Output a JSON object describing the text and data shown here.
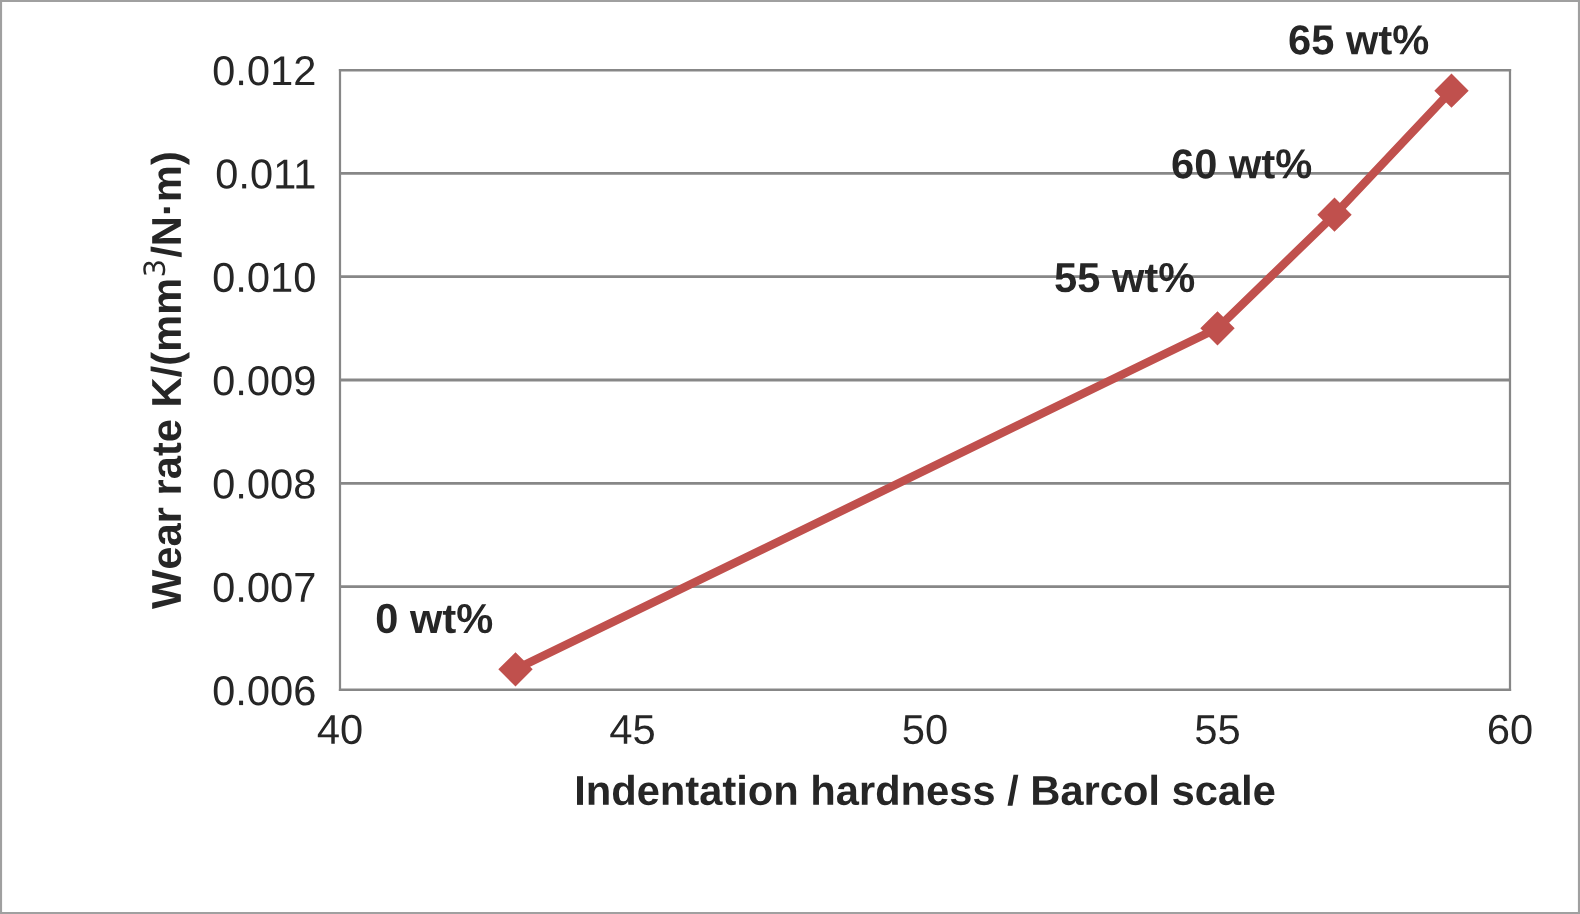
{
  "chart_data": {
    "type": "line",
    "xlabel": "Indentation hardness / Barcol scale",
    "ylabel": "Wear rate K/(mm$^{3}$/N·m)",
    "x": [
      43,
      55,
      57,
      59
    ],
    "series": [
      {
        "color": "#c0504d",
        "values": [
          0.0062,
          0.0095,
          0.0106,
          0.0118
        ]
      }
    ],
    "marker": "diamond",
    "line_style": "solid",
    "grid": "y",
    "legend": false,
    "xlim": [
      40,
      60
    ],
    "xticks": [
      40,
      45,
      50,
      55,
      60
    ],
    "ylim": [
      0.006,
      0.012
    ],
    "yticks": [
      {
        "value": 0.006,
        "label": "0.006"
      },
      {
        "value": 0.007,
        "label": "0.007"
      },
      {
        "value": 0.008,
        "label": "0.008"
      },
      {
        "value": 0.009,
        "label": "0.009"
      },
      {
        "value": 0.01,
        "label": "0.010"
      },
      {
        "value": 0.011,
        "label": "0.011"
      },
      {
        "value": 0.012,
        "label": "0.012"
      }
    ],
    "annotations": [
      {
        "text": "0 wt%",
        "x": 43,
        "y": 0.0062
      },
      {
        "text": "55 wt%",
        "x": 55,
        "y": 0.0095
      },
      {
        "text": "60 wt%",
        "x": 57,
        "y": 0.0106
      },
      {
        "text": "65 wt%",
        "x": 59,
        "y": 0.0118
      }
    ]
  }
}
